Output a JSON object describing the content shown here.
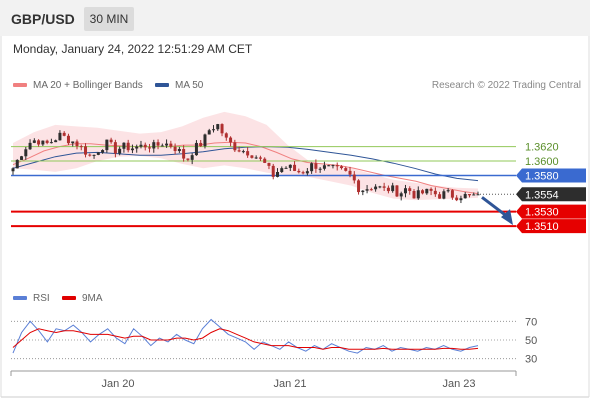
{
  "header": {
    "symbol": "GBP/USD",
    "timeframe": "30 MIN",
    "datetime": "Monday, January 24, 2022 12:51:29 AM CET"
  },
  "legend": {
    "ma20": "MA 20 + Bollinger Bands",
    "ma50": "MA 50",
    "credit": "Research © 2022 Trading Central",
    "rsi": "RSI",
    "nine_ma": "9MA"
  },
  "colors": {
    "ma20": "#f08080",
    "ma50": "#2f5597",
    "bollinger_fill": "#fbd9dc",
    "candle_up": "#2e2e2e",
    "candle_down": "#b03030",
    "level_green": "#92c85a",
    "level_blue": "#3a6ad0",
    "level_red": "#e60000",
    "arrow": "#2f5597",
    "rsi": "#5a7fd6",
    "nine_ma": "#e00000"
  },
  "chart_data": [
    {
      "type": "candlestick",
      "x_ticks": [
        "Jan 20",
        "Jan 21",
        "Jan 23"
      ],
      "price_levels": [
        {
          "value": 1.362,
          "label": "1.3620",
          "style": "green-line"
        },
        {
          "value": 1.36,
          "label": "1.3600",
          "style": "green-line"
        },
        {
          "value": 1.358,
          "label": "1.3580",
          "style": "blue-tag"
        },
        {
          "value": 1.3554,
          "label": "1.3554",
          "style": "dark-tag-current"
        },
        {
          "value": 1.353,
          "label": "1.3530",
          "style": "red-tag"
        },
        {
          "value": 1.351,
          "label": "1.3510",
          "style": "red-tag"
        }
      ],
      "ylim": [
        1.3488,
        1.369
      ],
      "close_path": [
        1.359,
        1.361,
        1.3625,
        1.363,
        1.3622,
        1.3628,
        1.3636,
        1.363,
        1.3625,
        1.3615,
        1.3605,
        1.3618,
        1.3625,
        1.3615,
        1.362,
        1.3618,
        1.362,
        1.3622,
        1.362,
        1.3625,
        1.3622,
        1.3615,
        1.36,
        1.3618,
        1.3625,
        1.3645,
        1.365,
        1.363,
        1.362,
        1.3615,
        1.3612,
        1.3605,
        1.3595,
        1.358,
        1.359,
        1.3592,
        1.3585,
        1.3586,
        1.3595,
        1.3592,
        1.359,
        1.3588,
        1.3585,
        1.3578,
        1.356,
        1.3563,
        1.3566,
        1.356,
        1.3562,
        1.3555,
        1.3563,
        1.3552,
        1.3556,
        1.3558,
        1.3552,
        1.3556,
        1.3551,
        1.3553,
        1.355,
        1.3554
      ],
      "ma20_path": [
        1.3595,
        1.3604,
        1.3614,
        1.362,
        1.3624,
        1.3624,
        1.3622,
        1.3621,
        1.362,
        1.362,
        1.362,
        1.3622,
        1.3622,
        1.3625,
        1.3626,
        1.3625,
        1.362,
        1.3612,
        1.3603,
        1.3598,
        1.3596,
        1.3594,
        1.359,
        1.3585,
        1.358,
        1.3576,
        1.3572,
        1.3566,
        1.3562,
        1.3558,
        1.3555
      ],
      "ma50_path": [
        1.359,
        1.3598,
        1.3606,
        1.3611,
        1.3612,
        1.361,
        1.3608,
        1.3608,
        1.361,
        1.3613,
        1.3617,
        1.3619,
        1.362,
        1.3619,
        1.3616,
        1.3612,
        1.3608,
        1.3603,
        1.3597,
        1.359,
        1.3582,
        1.3576,
        1.3573
      ],
      "bollinger_upper_path": [
        1.3625,
        1.364,
        1.365,
        1.3648,
        1.3646,
        1.3642,
        1.3638,
        1.364,
        1.3648,
        1.366,
        1.3668,
        1.3662,
        1.365,
        1.3622,
        1.36,
        1.3594,
        1.359,
        1.3582,
        1.3574,
        1.357,
        1.3566,
        1.3563,
        1.3562
      ],
      "bollinger_lower_path": [
        1.359,
        1.3588,
        1.3585,
        1.359,
        1.36,
        1.3606,
        1.3607,
        1.3604,
        1.3596,
        1.359,
        1.3594,
        1.359,
        1.3584,
        1.358,
        1.3578,
        1.3572,
        1.3566,
        1.3556,
        1.3548,
        1.3546,
        1.3547,
        1.3548,
        1.3549
      ],
      "forecast_arrow": {
        "from": 1.3554,
        "to": 1.351
      }
    },
    {
      "type": "line",
      "name": "RSI",
      "y_ticks": [
        70,
        50,
        30
      ],
      "ylim": [
        20,
        80
      ],
      "series": [
        {
          "name": "RSI",
          "values": [
            36,
            58,
            70,
            60,
            48,
            62,
            60,
            66,
            58,
            48,
            56,
            62,
            52,
            46,
            62,
            54,
            44,
            52,
            48,
            56,
            50,
            46,
            62,
            72,
            64,
            56,
            52,
            48,
            40,
            48,
            44,
            40,
            48,
            42,
            38,
            44,
            40,
            46,
            42,
            38,
            36,
            42,
            40,
            44,
            38,
            42,
            40,
            38,
            42,
            40,
            44,
            40,
            38,
            42,
            44
          ]
        },
        {
          "name": "9MA",
          "values": [
            42,
            50,
            58,
            62,
            60,
            58,
            60,
            60,
            58,
            56,
            56,
            56,
            54,
            52,
            54,
            54,
            50,
            50,
            50,
            52,
            52,
            50,
            52,
            58,
            62,
            60,
            56,
            52,
            48,
            46,
            44,
            44,
            44,
            42,
            42,
            42,
            40,
            42,
            42,
            40,
            40,
            40,
            40,
            41,
            40,
            40,
            40,
            40,
            40,
            40,
            41,
            41,
            40,
            40,
            41
          ]
        }
      ]
    }
  ]
}
